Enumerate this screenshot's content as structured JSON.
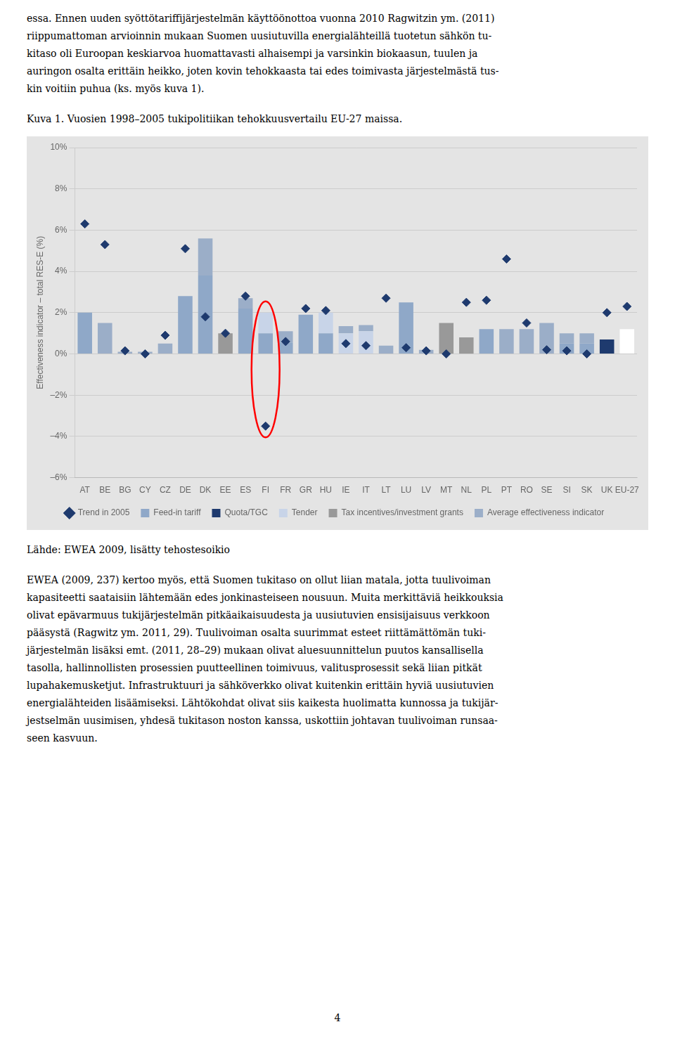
{
  "chart_data": {
    "type": "bar",
    "stacked": true,
    "grid": true,
    "legend": "bottom",
    "title": "Kuva 1. Vuosien 1998–2005 tukipolitiikan tehokkuusvertailu EU-27 maissa.",
    "text_above": [
      "essa. Ennen uuden syöttötariffijärjestelmän käyttöönottoa vuonna 2010 Ragwitzin ym. (2011)",
      "riippumattoman arvioinnin mukaan Suomen uusiutuvilla energialähteillä tuotetun sähkön tu-",
      "kitaso oli Euroopan keskiarvoa huomattavasti alhaisempi ja varsinkin biokaasun, tuulen ja",
      "auringon osalta erittäin heikko, joten kovin tehokkaasta tai edes toimivasta järjestelmästä tus-",
      "kin voitiin puhua (ks. myös kuva 1)."
    ],
    "source": "Lähde: EWEA 2009, lisätty tehostesoikio",
    "text_below": [
      "EWEA (2009, 237) kertoo myös, että Suomen tukitaso on ollut liian matala, jotta tuulivoiman",
      "kapasiteetti saataisiin lähtemään edes jonkinasteiseen nousuun. Muita merkittäviä heikkouksia",
      "olivat epävarmuus tukijärjestelmän pitkäaikaisuudesta ja uusiutuvien ensisijaisuus verkkoon",
      "pääsystä (Ragwitz ym. 2011, 29). Tuulivoiman osalta suurimmat esteet riittämättömän tuki-",
      "järjestelmän lisäksi emt. (2011, 28–29) mukaan olivat aluesuunnittelun puutos kansallisella",
      "tasolla, hallinnollisten prosessien puutteellinen toimivuus, valitusprosessit sekä liian pitkät",
      "lupahakemusketjut. Infrastruktuuri ja sähköverkko olivat kuitenkin erittäin hyviä uusiutuvien",
      "energialähteiden lisäämiseksi. Lähtökohdat olivat siis kaikesta huolimatta kunnossa ja tukijär-",
      "jestselmän uusimisen, yhdesä tukitason noston kanssa, uskottiin johtavan tuulivoiman runsaa-",
      "seen kasvuun."
    ],
    "page_number": "4",
    "categories": [
      "AT",
      "BE",
      "BG",
      "CY",
      "CZ",
      "DE",
      "DK",
      "EE",
      "ES",
      "FI",
      "FR",
      "GR",
      "HU",
      "IE",
      "IT",
      "LT",
      "LU",
      "LV",
      "MT",
      "NL",
      "PL",
      "PT",
      "RO",
      "SE",
      "SI",
      "SK",
      "UK",
      "EU-27"
    ],
    "ylabel": "Effectiveness indicator – total RES-E (%)",
    "ylim": [
      -6,
      10
    ],
    "yticks": [
      {
        "value": -6,
        "label": "–6%"
      },
      {
        "value": -4,
        "label": "–4%"
      },
      {
        "value": -2,
        "label": "–2%"
      },
      {
        "value": 0,
        "label": "0%"
      },
      {
        "value": 2,
        "label": "2%"
      },
      {
        "value": 4,
        "label": "4%"
      },
      {
        "value": 6,
        "label": "6%"
      },
      {
        "value": 8,
        "label": "8%"
      },
      {
        "value": 10,
        "label": "10%"
      }
    ],
    "series": [
      {
        "name": "Feed-in tariff",
        "color": "#8fa8c8",
        "values": [
          2.0,
          0.0,
          0.0,
          0.0,
          0.0,
          2.8,
          3.8,
          0.0,
          2.2,
          1.0,
          0.55,
          1.9,
          1.0,
          0.0,
          0.0,
          0.0,
          2.5,
          0.0,
          0.0,
          0.0,
          1.2,
          0.0,
          0.0,
          0.0,
          0.5,
          0.5,
          0.0,
          0.0
        ]
      },
      {
        "name": "Quota/TGC",
        "color": "#1e3a6e",
        "values": [
          0.0,
          0.0,
          0.0,
          0.0,
          0.0,
          0.0,
          0.0,
          0.0,
          0.0,
          0.0,
          0.0,
          0.0,
          0.0,
          0.0,
          0.0,
          0.0,
          0.0,
          0.0,
          0.0,
          0.0,
          0.0,
          0.0,
          0.0,
          0.0,
          0.0,
          0.0,
          0.7,
          0.0
        ]
      },
      {
        "name": "Tender",
        "color": "#c8d4e8",
        "values": [
          0.0,
          0.0,
          0.0,
          0.0,
          0.0,
          0.0,
          0.0,
          0.0,
          0.0,
          1.0,
          0.0,
          0.0,
          1.0,
          1.0,
          1.1,
          0.0,
          0.0,
          0.0,
          0.0,
          0.0,
          0.0,
          0.0,
          0.0,
          0.0,
          0.0,
          0.0,
          0.0,
          0.0
        ]
      },
      {
        "name": "Tax incentives/investment grants",
        "color": "#999999",
        "values": [
          0.0,
          0.0,
          0.0,
          0.0,
          0.0,
          0.0,
          0.0,
          1.0,
          0.0,
          0.0,
          0.0,
          0.0,
          0.0,
          0.0,
          0.0,
          0.0,
          0.0,
          0.0,
          1.5,
          0.8,
          0.0,
          0.0,
          0.0,
          0.0,
          0.0,
          0.0,
          0.0,
          0.0
        ]
      },
      {
        "name": "Average effectiveness indicator",
        "color": "#9baec8",
        "colors": [
          "#9baec8",
          "#9baec8",
          "#9baec8",
          "#9baec8",
          "#9baec8",
          "#9baec8",
          "#9baec8",
          "#9baec8",
          "#9baec8",
          "#9baec8",
          "#9baec8",
          "#9baec8",
          "#9baec8",
          "#9baec8",
          "#9baec8",
          "#9baec8",
          "#9baec8",
          "#9baec8",
          "#9baec8",
          "#9baec8",
          "#9baec8",
          "#9baec8",
          "#9baec8",
          "#9baec8",
          "#9baec8",
          "#9baec8",
          "#9baec8",
          "#ffffff"
        ],
        "values": [
          0.0,
          1.5,
          0.1,
          0.1,
          0.5,
          0.0,
          1.8,
          0.0,
          0.5,
          0.0,
          0.55,
          0.0,
          0.0,
          0.35,
          0.3,
          0.4,
          0.0,
          0.2,
          0.0,
          0.0,
          0.0,
          1.2,
          1.2,
          1.5,
          0.5,
          0.5,
          0.0,
          1.2
        ]
      },
      {
        "name": "Trend in 2005",
        "type": "scatter",
        "marker": "diamond",
        "color": "#1e3a6e",
        "values": [
          6.3,
          5.3,
          0.15,
          0.0,
          0.9,
          5.1,
          1.8,
          1.0,
          2.8,
          -3.5,
          0.6,
          2.2,
          2.1,
          0.5,
          0.4,
          2.7,
          0.3,
          0.15,
          0.0,
          2.5,
          2.6,
          4.6,
          1.5,
          0.2,
          0.15,
          0.0,
          2.0,
          2.3
        ]
      }
    ],
    "highlight": {
      "category": "FI",
      "color": "red"
    }
  }
}
